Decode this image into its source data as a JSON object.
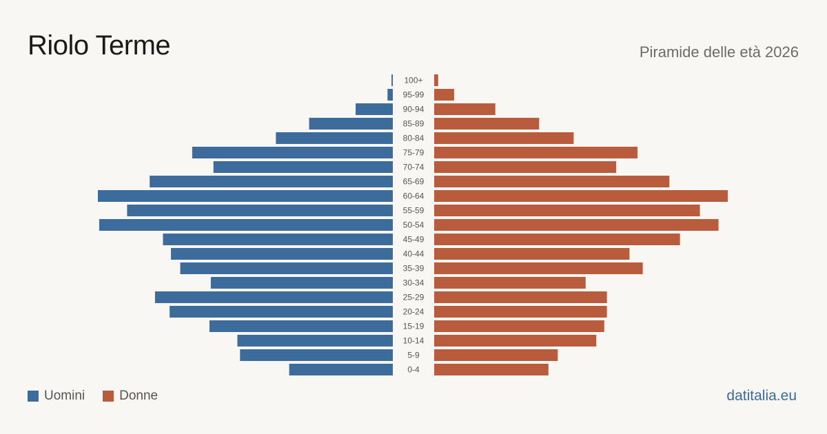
{
  "header": {
    "title": "Riolo Terme",
    "subtitle": "Piramide delle età 2026"
  },
  "footer": {
    "source": "datitalia.eu"
  },
  "colors": {
    "men": "#3d6b9c",
    "women": "#b95c3e",
    "background": "#f9f7f3",
    "tick_text": "#555555"
  },
  "chart_data": {
    "type": "bar",
    "orientation": "horizontal-pyramid",
    "title": "Piramide delle età 2026",
    "categories": [
      "100+",
      "95-99",
      "90-94",
      "85-89",
      "80-84",
      "75-79",
      "70-74",
      "65-69",
      "60-64",
      "55-59",
      "50-54",
      "45-49",
      "40-44",
      "35-39",
      "30-34",
      "25-29",
      "20-24",
      "15-19",
      "10-14",
      "5-9",
      "0-4"
    ],
    "series": [
      {
        "name": "Uomini",
        "side": "left",
        "values": [
          1,
          4,
          28,
          63,
          88,
          151,
          135,
          183,
          222,
          200,
          221,
          173,
          167,
          160,
          137,
          179,
          168,
          138,
          117,
          115,
          78
        ]
      },
      {
        "name": "Donne",
        "side": "right",
        "values": [
          3,
          15,
          46,
          79,
          105,
          153,
          137,
          177,
          221,
          200,
          214,
          185,
          147,
          157,
          114,
          130,
          130,
          128,
          122,
          93,
          86
        ]
      }
    ],
    "legend": {
      "placement": "bottom-left",
      "entries": [
        "Uomini",
        "Donne"
      ]
    },
    "grid": false
  }
}
